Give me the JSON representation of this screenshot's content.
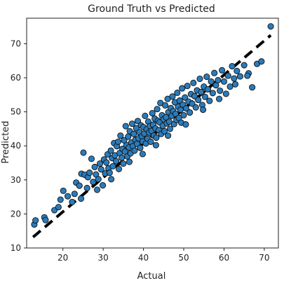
{
  "chart_data": {
    "type": "scatter",
    "title": "Ground Truth vs Predicted",
    "xlabel": "Actual",
    "ylabel": "Predicted",
    "xlim": [
      11.0,
      73.5
    ],
    "ylim": [
      10,
      77.5
    ],
    "xticks": [
      20,
      30,
      40,
      50,
      60,
      70
    ],
    "yticks": [
      10,
      20,
      30,
      40,
      50,
      60,
      70
    ],
    "grid": false,
    "legend": "none",
    "colors": {
      "point_fill": "#2b7bba",
      "point_edge": "#111111",
      "reference_line": "#000000"
    },
    "reference_line": {
      "style": "dashed",
      "points": [
        [
          12.6,
          13.2
        ],
        [
          71.6,
          72.5
        ]
      ]
    },
    "points": [
      [
        12.9,
        16.9
      ],
      [
        13.2,
        18.1
      ],
      [
        15.4,
        19.0
      ],
      [
        15.7,
        18.2
      ],
      [
        17.9,
        21.1
      ],
      [
        18.9,
        22.0
      ],
      [
        19.4,
        24.2
      ],
      [
        20.1,
        26.8
      ],
      [
        21.2,
        25.2
      ],
      [
        22.3,
        23.5
      ],
      [
        22.9,
        25.9
      ],
      [
        23.3,
        29.2
      ],
      [
        24.1,
        28.3
      ],
      [
        24.6,
        31.8
      ],
      [
        25.1,
        38.0
      ],
      [
        25.4,
        31.5
      ],
      [
        26.0,
        27.6
      ],
      [
        26.2,
        30.8
      ],
      [
        26.6,
        32.1
      ],
      [
        27.1,
        36.2
      ],
      [
        27.5,
        29.4
      ],
      [
        27.9,
        33.8
      ],
      [
        28.2,
        31.6
      ],
      [
        28.8,
        30.2
      ],
      [
        29.2,
        34.8
      ],
      [
        29.5,
        33.1
      ],
      [
        29.9,
        28.4
      ],
      [
        30.2,
        36.0
      ],
      [
        30.5,
        31.9
      ],
      [
        30.8,
        35.1
      ],
      [
        31.1,
        37.5
      ],
      [
        31.3,
        33.4
      ],
      [
        31.6,
        32.1
      ],
      [
        31.9,
        38.6
      ],
      [
        32.2,
        36.4
      ],
      [
        32.4,
        34.0
      ],
      [
        32.7,
        40.8
      ],
      [
        32.9,
        37.2
      ],
      [
        33.2,
        35.5
      ],
      [
        33.4,
        39.9
      ],
      [
        33.7,
        41.2
      ],
      [
        33.9,
        33.2
      ],
      [
        34.1,
        37.9
      ],
      [
        34.3,
        43.0
      ],
      [
        34.6,
        36.5
      ],
      [
        34.8,
        39.1
      ],
      [
        35.0,
        34.8
      ],
      [
        35.2,
        41.6
      ],
      [
        35.4,
        38.3
      ],
      [
        35.6,
        45.8
      ],
      [
        35.8,
        40.2
      ],
      [
        36.0,
        36.9
      ],
      [
        36.2,
        42.7
      ],
      [
        36.4,
        39.5
      ],
      [
        36.6,
        44.3
      ],
      [
        36.8,
        37.8
      ],
      [
        37.0,
        41.0
      ],
      [
        37.2,
        46.5
      ],
      [
        37.4,
        39.9
      ],
      [
        37.6,
        43.5
      ],
      [
        37.8,
        38.6
      ],
      [
        38.0,
        41.8
      ],
      [
        38.2,
        45.2
      ],
      [
        38.4,
        40.6
      ],
      [
        38.6,
        47.3
      ],
      [
        38.8,
        42.2
      ],
      [
        39.0,
        44.0
      ],
      [
        39.2,
        39.4
      ],
      [
        39.4,
        46.0
      ],
      [
        39.6,
        42.8
      ],
      [
        39.8,
        41.3
      ],
      [
        40.0,
        45.5
      ],
      [
        40.2,
        43.6
      ],
      [
        40.4,
        48.8
      ],
      [
        40.6,
        40.7
      ],
      [
        40.8,
        44.9
      ],
      [
        41.0,
        42.1
      ],
      [
        41.2,
        47.1
      ],
      [
        41.4,
        43.9
      ],
      [
        41.6,
        45.8
      ],
      [
        41.8,
        41.2
      ],
      [
        42.0,
        44.4
      ],
      [
        42.2,
        49.6
      ],
      [
        42.4,
        46.2
      ],
      [
        42.6,
        43.0
      ],
      [
        42.8,
        48.0
      ],
      [
        43.0,
        45.1
      ],
      [
        43.2,
        42.4
      ],
      [
        43.4,
        50.8
      ],
      [
        43.6,
        47.4
      ],
      [
        43.8,
        44.6
      ],
      [
        44.0,
        46.9
      ],
      [
        44.2,
        52.6
      ],
      [
        44.4,
        43.5
      ],
      [
        44.6,
        49.0
      ],
      [
        44.8,
        45.9
      ],
      [
        45.0,
        47.8
      ],
      [
        45.2,
        44.3
      ],
      [
        45.4,
        51.9
      ],
      [
        45.6,
        48.4
      ],
      [
        45.8,
        46.6
      ],
      [
        46.0,
        53.8
      ],
      [
        46.2,
        49.9
      ],
      [
        46.4,
        47.1
      ],
      [
        46.6,
        45.0
      ],
      [
        46.8,
        51.1
      ],
      [
        47.0,
        48.8
      ],
      [
        47.2,
        54.5
      ],
      [
        47.4,
        50.2
      ],
      [
        47.6,
        46.4
      ],
      [
        47.8,
        52.8
      ],
      [
        48.0,
        49.4
      ],
      [
        48.2,
        47.6
      ],
      [
        48.4,
        55.6
      ],
      [
        48.6,
        51.5
      ],
      [
        48.8,
        48.2
      ],
      [
        49.0,
        53.3
      ],
      [
        49.2,
        50.6
      ],
      [
        49.4,
        46.8
      ],
      [
        49.6,
        56.9
      ],
      [
        49.8,
        52.1
      ],
      [
        50.0,
        49.0
      ],
      [
        50.3,
        54.2
      ],
      [
        50.6,
        51.0
      ],
      [
        50.9,
        57.6
      ],
      [
        51.2,
        53.0
      ],
      [
        51.5,
        49.8
      ],
      [
        51.8,
        55.2
      ],
      [
        52.1,
        52.4
      ],
      [
        52.4,
        58.5
      ],
      [
        52.7,
        54.6
      ],
      [
        53.0,
        51.3
      ],
      [
        53.3,
        56.3
      ],
      [
        53.6,
        53.5
      ],
      [
        54.0,
        59.7
      ],
      [
        54.3,
        55.8
      ],
      [
        54.6,
        52.0
      ],
      [
        55.0,
        57.4
      ],
      [
        55.3,
        54.4
      ],
      [
        55.7,
        60.3
      ],
      [
        56.0,
        56.6
      ],
      [
        56.4,
        53.2
      ],
      [
        56.8,
        58.9
      ],
      [
        57.2,
        55.5
      ],
      [
        57.6,
        61.4
      ],
      [
        58.0,
        57.8
      ],
      [
        58.5,
        59.3
      ],
      [
        59.0,
        56.2
      ],
      [
        59.5,
        62.2
      ],
      [
        60.0,
        58.9
      ],
      [
        60.5,
        55.3
      ],
      [
        61.0,
        60.6
      ],
      [
        61.5,
        57.4
      ],
      [
        62.0,
        63.4
      ],
      [
        62.5,
        59.8
      ],
      [
        63.2,
        62.0
      ],
      [
        64.0,
        60.4
      ],
      [
        65.0,
        63.7
      ],
      [
        66.1,
        61.3
      ],
      [
        67.0,
        57.2
      ],
      [
        68.2,
        64.1
      ],
      [
        69.3,
        64.8
      ],
      [
        71.6,
        75.1
      ],
      [
        24.5,
        24.5
      ],
      [
        28.5,
        27.1
      ],
      [
        32.0,
        30.2
      ],
      [
        36.5,
        35.3
      ],
      [
        39.8,
        37.6
      ],
      [
        43.1,
        40.2
      ],
      [
        46.1,
        43.0
      ],
      [
        50.5,
        46.3
      ],
      [
        54.8,
        50.6
      ],
      [
        58.8,
        53.8
      ],
      [
        62.8,
        58.1
      ],
      [
        65.8,
        60.6
      ]
    ]
  }
}
